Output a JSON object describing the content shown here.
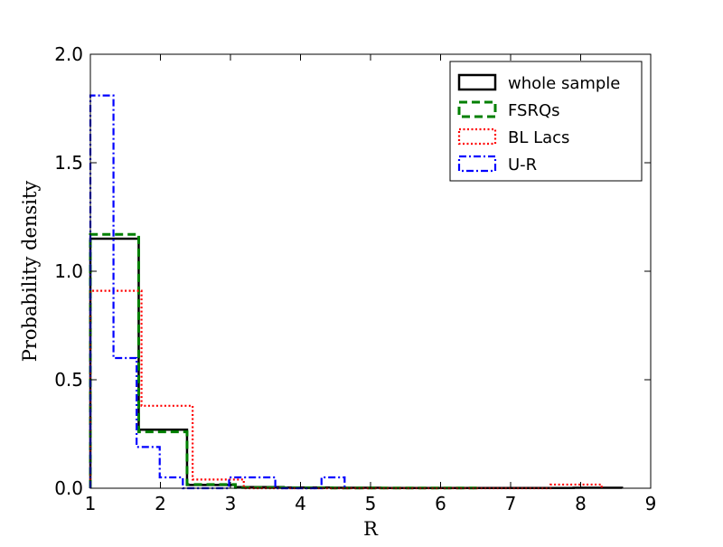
{
  "chart_data": {
    "type": "histogram-step",
    "xlabel": "R",
    "ylabel": "Probability density",
    "xlim": [
      1,
      9
    ],
    "ylim": [
      0,
      2.0
    ],
    "xticks": [
      1,
      2,
      3,
      4,
      5,
      6,
      7,
      8,
      9
    ],
    "ytick_labels": [
      "0.0",
      "0.5",
      "1.0",
      "1.5",
      "2.0"
    ],
    "yticks": [
      0.0,
      0.5,
      1.0,
      1.5,
      2.0
    ],
    "legend_location": "top-right",
    "series": [
      {
        "name": "whole sample",
        "color": "#000000",
        "line_style": "solid",
        "bin_edges": [
          1.0,
          1.69,
          2.38,
          3.07,
          3.76,
          4.45,
          5.14,
          5.83,
          6.52,
          7.21,
          7.9,
          8.59
        ],
        "values": [
          1.15,
          0.27,
          0.015,
          0.005,
          0.003,
          0.002,
          0.001,
          0.001,
          0.001,
          0.001,
          0.002
        ]
      },
      {
        "name": "FSRQs",
        "color": "#008000",
        "line_style": "dashed",
        "bin_edges": [
          1.0,
          1.69,
          2.38,
          3.07,
          3.76,
          4.45,
          5.14,
          5.83,
          6.52
        ],
        "values": [
          1.17,
          0.26,
          0.017,
          0.003,
          0.002,
          0.001,
          0.001,
          0.001
        ]
      },
      {
        "name": "BL Lacs",
        "color": "#ff0000",
        "line_style": "dotted",
        "bin_edges": [
          1.0,
          1.73,
          2.46,
          3.19,
          3.92,
          4.65,
          5.38,
          6.11,
          6.84,
          7.57,
          8.3
        ],
        "values": [
          0.91,
          0.38,
          0.04,
          0.0,
          0.0,
          0.0,
          0.0,
          0.0,
          0.0,
          0.017
        ]
      },
      {
        "name": "U-R",
        "color": "#0000ff",
        "line_style": "dashdot",
        "bin_edges": [
          1.0,
          1.33,
          1.66,
          1.99,
          2.32,
          2.65,
          2.98,
          3.31,
          3.64,
          3.97,
          4.3,
          4.63
        ],
        "values": [
          1.81,
          0.6,
          0.19,
          0.05,
          0.0,
          0.0,
          0.05,
          0.05,
          0.0,
          0.0,
          0.05
        ]
      }
    ]
  }
}
